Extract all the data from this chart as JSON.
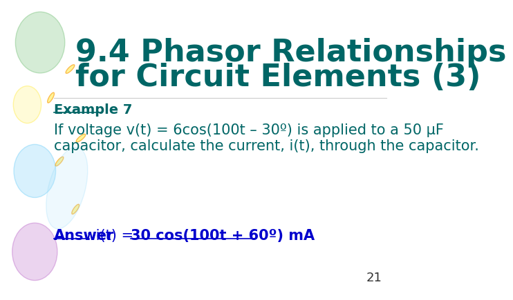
{
  "background_color": "#ffffff",
  "title_line1": "9.4 Phasor Relationships",
  "title_line2": "for Circuit Elements (3)",
  "title_color": "#006666",
  "title_fontsize": 32,
  "example_label": "Example 7",
  "example_color": "#006666",
  "example_fontsize": 14,
  "body_color": "#006666",
  "body_fontsize": 15,
  "answer_color": "#0000cc",
  "answer_fontsize": 15,
  "page_number": "21",
  "page_color": "#333333",
  "page_fontsize": 13
}
